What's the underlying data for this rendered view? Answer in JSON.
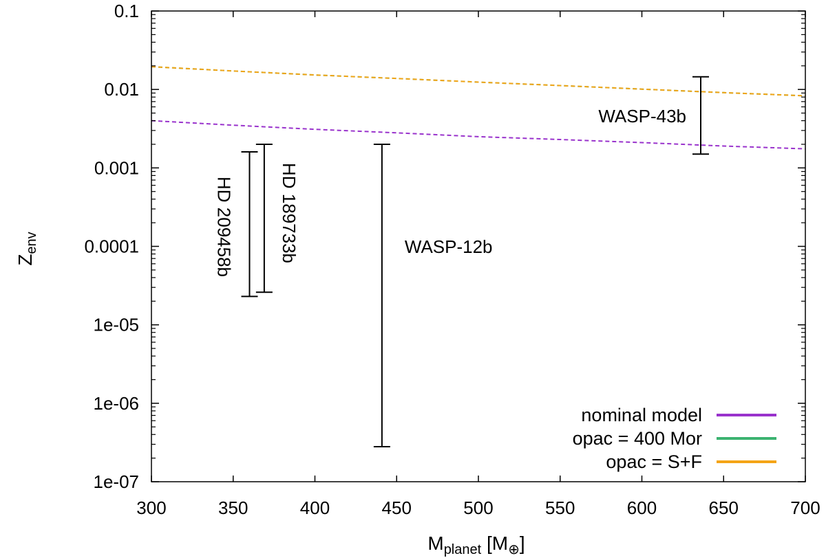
{
  "chart_data": {
    "type": "line",
    "xlabel": "M",
    "xlabel_sub": "planet",
    "xlabel_unit_open": " [M",
    "xlabel_unit_sub": "⊕",
    "xlabel_unit_close": "]",
    "ylabel": "Z",
    "ylabel_sub": "env",
    "xlim": [
      300,
      700
    ],
    "ylim": [
      1e-07,
      0.1
    ],
    "yscale": "log",
    "x_ticks": [
      300,
      350,
      400,
      450,
      500,
      550,
      600,
      650,
      700
    ],
    "x_tick_labels": [
      "300",
      "350",
      "400",
      "450",
      "500",
      "550",
      "600",
      "650",
      "700"
    ],
    "y_ticks": [
      1e-07,
      1e-06,
      1e-05,
      0.0001,
      0.001,
      0.01,
      0.1
    ],
    "y_tick_labels": [
      "1e-07",
      "1e-06",
      "1e-05",
      "0.0001",
      "0.001",
      "0.01",
      "0.1"
    ],
    "legend_position": "bottom-right",
    "series": [
      {
        "name": "nominal model",
        "color": "#9932cc",
        "style": "dashed",
        "x": [
          300,
          350,
          400,
          450,
          500,
          550,
          600,
          650,
          700
        ],
        "y": [
          0.004,
          0.0035,
          0.0031,
          0.0028,
          0.0025,
          0.0023,
          0.0021,
          0.0019,
          0.00175
        ]
      },
      {
        "name": "opac = 400 Mor",
        "color": "#3cb371",
        "style": "dashed",
        "x": [
          300,
          350,
          400,
          450,
          500,
          550,
          600,
          650,
          700
        ],
        "y": [
          0.0195,
          0.0172,
          0.0153,
          0.0138,
          0.0124,
          0.0112,
          0.0101,
          0.0091,
          0.0083
        ]
      },
      {
        "name": "opac = S+F",
        "color": "#f4a416",
        "style": "dashed",
        "x": [
          300,
          350,
          400,
          450,
          500,
          550,
          600,
          650,
          700
        ],
        "y": [
          0.0195,
          0.0172,
          0.0153,
          0.0138,
          0.0124,
          0.0112,
          0.0101,
          0.0091,
          0.0083
        ]
      }
    ],
    "error_bars": [
      {
        "label": "WASP-43b",
        "x": 636,
        "y_low": 0.0015,
        "y_high": 0.0145
      },
      {
        "label": "WASP-12b",
        "x": 441,
        "y_low": 2.8e-07,
        "y_high": 0.002
      },
      {
        "label": "HD 209458b",
        "x": 360,
        "y_low": 2.3e-05,
        "y_high": 0.0016
      },
      {
        "label": "HD 189733b",
        "x": 369,
        "y_low": 2.6e-05,
        "y_high": 0.002
      }
    ]
  }
}
